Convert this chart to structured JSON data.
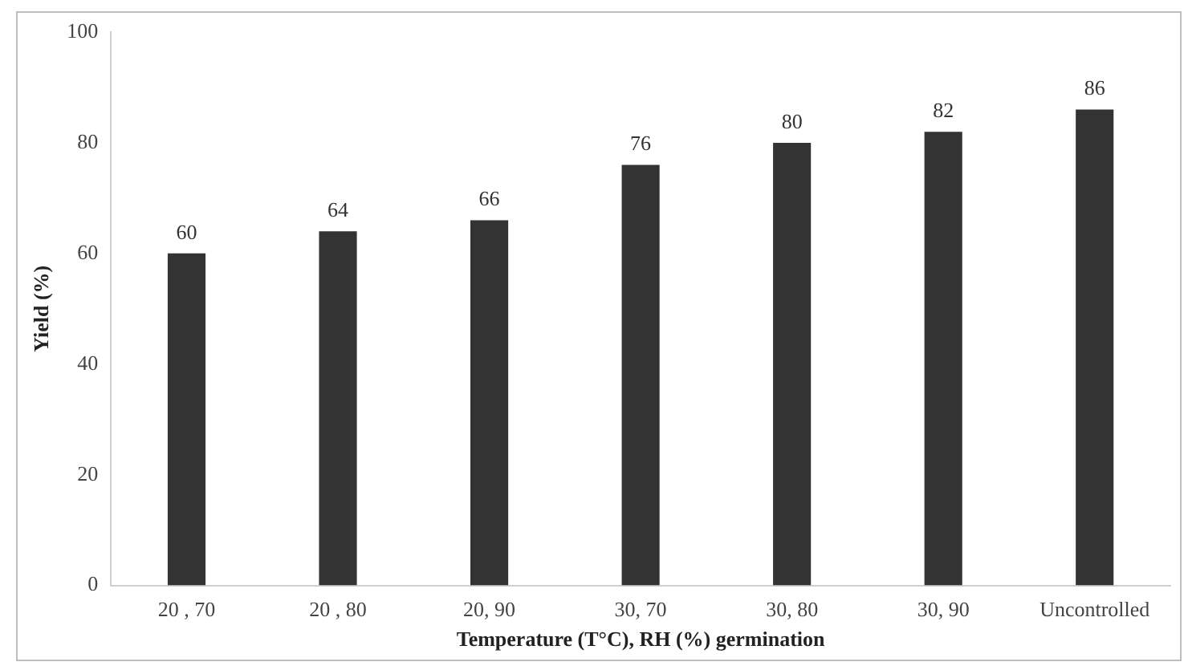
{
  "chart_data": {
    "type": "bar",
    "xlabel": "Temperature (T°C), RH (%) germination",
    "ylabel": "Yield (%)",
    "categories": [
      "20 , 70",
      "20 , 80",
      "20, 90",
      "30, 70",
      "30, 80",
      "30, 90",
      "Uncontrolled"
    ],
    "values": [
      60,
      64,
      66,
      76,
      80,
      82,
      86
    ],
    "color": "#333333",
    "ylim": [
      0,
      100
    ],
    "yticks": [
      0,
      20,
      40,
      60,
      80,
      100
    ],
    "grid": false,
    "data_labels": true
  }
}
